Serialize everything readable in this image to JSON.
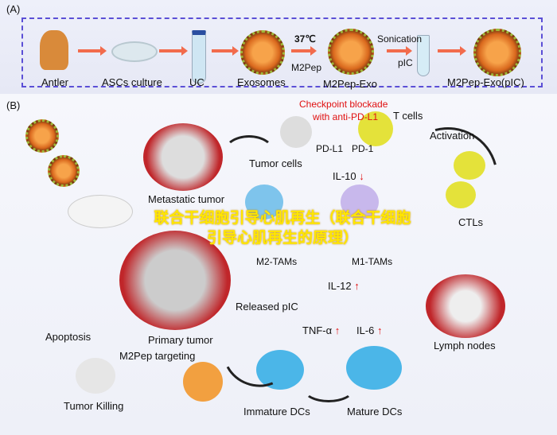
{
  "panel_a": {
    "label": "(A)",
    "steps": [
      "Antler",
      "ASCs culture",
      "UC",
      "Exosomes",
      "M2Pep-Exo",
      "M2Pep-Exo(pIC)"
    ],
    "temp": "37℃",
    "m2pep": "M2Pep",
    "sonication": "Sonication",
    "pic": "pIC"
  },
  "panel_b": {
    "label": "(B)",
    "checkpoint": "Checkpoint blockade",
    "checkpoint2": "with anti-PD-L1",
    "t_cells": "T cells",
    "pdl1": "PD-L1",
    "pd1": "PD-1",
    "activation": "Activation",
    "tumor_cells": "Tumor cells",
    "metastatic": "Metastatic tumor",
    "il10": "IL-10",
    "m2tams": "M2-TAMs",
    "m1tams": "M1-TAMs",
    "ctls": "CTLs",
    "released": "Released pIC",
    "il12": "IL-12",
    "tnf": "TNF-α",
    "il6": "IL-6",
    "primary": "Primary tumor",
    "apoptosis": "Apoptosis",
    "targeting": "M2Pep targeting",
    "killing": "Tumor Killing",
    "immature": "Immature DCs",
    "mature": "Mature DCs",
    "lymph": "Lymph nodes",
    "up_arrow": "↑",
    "down_arrow": "↓"
  },
  "overlay": "联合干细胞引导心肌再生（联合干细胞引导心肌再生的原理）",
  "colors": {
    "dash_border": "#5b4fd6",
    "arrow": "#f26b4c",
    "red_text": "#e01010",
    "overlay": "#ffe600"
  }
}
